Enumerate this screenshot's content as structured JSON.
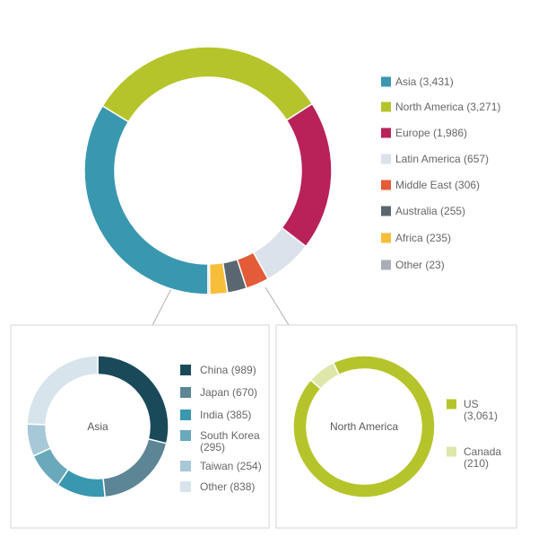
{
  "chart_data": [
    {
      "type": "pie",
      "donut": true,
      "title": "",
      "legend_position": "right",
      "series": [
        {
          "name": "Asia",
          "label": "Asia (3,431)",
          "value": 3431,
          "color": "#3a97b0"
        },
        {
          "name": "North America",
          "label": "North America (3,271)",
          "value": 3271,
          "color": "#b5c42b"
        },
        {
          "name": "Europe",
          "label": "Europe (1,986)",
          "value": 1986,
          "color": "#b82259"
        },
        {
          "name": "Latin America",
          "label": "Latin America (657)",
          "value": 657,
          "color": "#dbe2ec"
        },
        {
          "name": "Middle East",
          "label": "Middle East (306)",
          "value": 306,
          "color": "#e35b37"
        },
        {
          "name": "Australia",
          "label": "Australia (255)",
          "value": 255,
          "color": "#5a6770"
        },
        {
          "name": "Africa",
          "label": "Africa (235)",
          "value": 235,
          "color": "#f7be3a"
        },
        {
          "name": "Other",
          "label": "Other (23)",
          "value": 23,
          "color": "#a9adb6"
        }
      ]
    },
    {
      "type": "pie",
      "donut": true,
      "center_label": "Asia",
      "legend_position": "right",
      "series": [
        {
          "name": "China",
          "label": "China (989)",
          "value": 989,
          "color": "#1a4a5a"
        },
        {
          "name": "Japan",
          "label": "Japan (670)",
          "value": 670,
          "color": "#5c8596"
        },
        {
          "name": "India",
          "label": "India (385)",
          "value": 385,
          "color": "#3a97b0"
        },
        {
          "name": "South Korea",
          "label": "South Korea\n(295)",
          "value": 295,
          "color": "#6aa9bc"
        },
        {
          "name": "Taiwan",
          "label": "Taiwan (254)",
          "value": 254,
          "color": "#a7c8d6"
        },
        {
          "name": "Other",
          "label": "Other (838)",
          "value": 838,
          "color": "#d7e4eb"
        }
      ]
    },
    {
      "type": "pie",
      "donut": true,
      "center_label": "North America",
      "legend_position": "right",
      "series": [
        {
          "name": "US",
          "label": "US\n(3,061)",
          "value": 3061,
          "color": "#b5c42b"
        },
        {
          "name": "Canada",
          "label": "Canada\n(210)",
          "value": 210,
          "color": "#dfe6aa"
        }
      ]
    }
  ],
  "colors": {
    "panel_border": "#d4d4d4",
    "connector": "#b0b0b0"
  }
}
